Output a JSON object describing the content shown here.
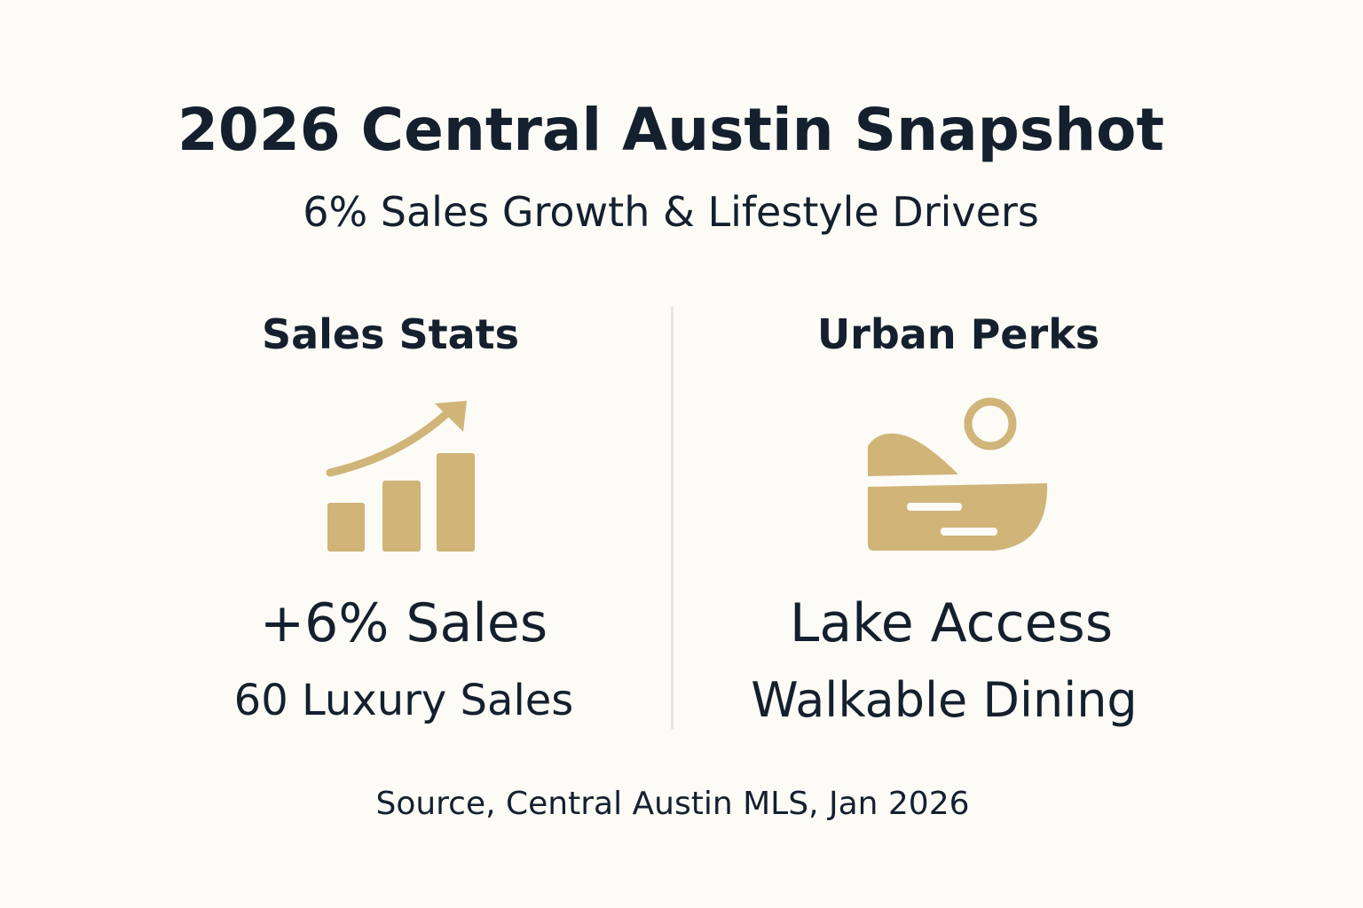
{
  "header": {
    "title": "2026 Central Austin Snapshot",
    "subtitle": "6% Sales Growth & Lifestyle Drivers"
  },
  "panels": [
    {
      "heading": "Sales Stats",
      "primary": "+6% Sales",
      "secondary": "60 Luxury Sales"
    },
    {
      "heading": "Urban Perks",
      "primary": "Lake Access",
      "secondary": "Walkable Dining"
    }
  ],
  "footer": {
    "source": "Source, Central Austin MLS, Jan 2026"
  }
}
